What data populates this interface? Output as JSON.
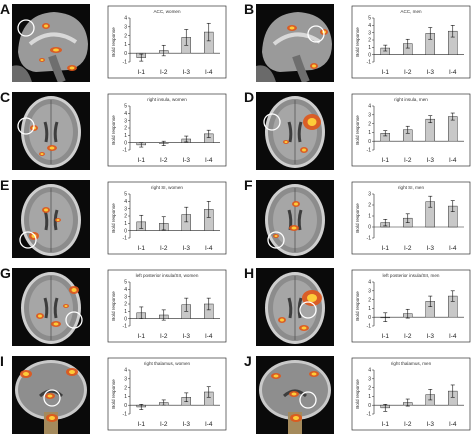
{
  "panels": [
    {
      "label": "A",
      "view": "sagittal"
    },
    {
      "label": "B",
      "view": "sagittal"
    },
    {
      "label": "C",
      "view": "axial"
    },
    {
      "label": "D",
      "view": "axial"
    },
    {
      "label": "E",
      "view": "axial"
    },
    {
      "label": "F",
      "view": "axial"
    },
    {
      "label": "G",
      "view": "axial"
    },
    {
      "label": "H",
      "view": "axial"
    },
    {
      "label": "I",
      "view": "coronal"
    },
    {
      "label": "J",
      "view": "coronal"
    }
  ],
  "chart_data": [
    {
      "type": "bar",
      "title": "ACC, women",
      "ylabel": "Bold response",
      "categories": [
        "I-1",
        "I-2",
        "I-3",
        "I-4"
      ],
      "values": [
        -0.5,
        0.3,
        1.8,
        2.4
      ],
      "errors": [
        0.4,
        0.6,
        0.9,
        1.0
      ],
      "ylim": [
        -1,
        4
      ],
      "yticks": [
        -1,
        0,
        1,
        2,
        3,
        4
      ]
    },
    {
      "type": "bar",
      "title": "ACC, men",
      "ylabel": "Bold response",
      "categories": [
        "I-1",
        "I-2",
        "I-3",
        "I-4"
      ],
      "values": [
        0.9,
        1.5,
        2.9,
        3.2
      ],
      "errors": [
        0.4,
        0.6,
        0.8,
        0.8
      ],
      "ylim": [
        -1,
        5
      ],
      "yticks": [
        -1,
        0,
        1,
        2,
        3,
        4,
        5
      ]
    },
    {
      "type": "bar",
      "title": "right insula, women",
      "ylabel": "Bold response",
      "categories": [
        "I-1",
        "I-2",
        "I-3",
        "I-4"
      ],
      "values": [
        -0.3,
        -0.1,
        0.5,
        1.2
      ],
      "errors": [
        0.3,
        0.3,
        0.4,
        0.5
      ],
      "ylim": [
        -1,
        5
      ],
      "yticks": [
        -1,
        0,
        1,
        2,
        3,
        4,
        5
      ]
    },
    {
      "type": "bar",
      "title": "right insula, men",
      "ylabel": "Bold response",
      "categories": [
        "I-1",
        "I-2",
        "I-3",
        "I-4"
      ],
      "values": [
        0.9,
        1.3,
        2.5,
        2.8
      ],
      "errors": [
        0.3,
        0.4,
        0.4,
        0.4
      ],
      "ylim": [
        -1,
        4
      ],
      "yticks": [
        -1,
        0,
        1,
        2,
        3,
        4
      ]
    },
    {
      "type": "bar",
      "title": "right SI, women",
      "ylabel": "Bold response",
      "categories": [
        "I-1",
        "I-2",
        "I-3",
        "I-4"
      ],
      "values": [
        1.2,
        1.0,
        2.2,
        2.9
      ],
      "errors": [
        0.9,
        0.9,
        1.0,
        1.1
      ],
      "ylim": [
        -1,
        5
      ],
      "yticks": [
        -1,
        0,
        1,
        2,
        3,
        4,
        5
      ]
    },
    {
      "type": "bar",
      "title": "right SI, men",
      "ylabel": "Bold response",
      "categories": [
        "I-1",
        "I-2",
        "I-3",
        "I-4"
      ],
      "values": [
        0.4,
        0.8,
        2.3,
        1.9
      ],
      "errors": [
        0.3,
        0.4,
        0.5,
        0.5
      ],
      "ylim": [
        -1,
        3
      ],
      "yticks": [
        -1,
        0,
        1,
        2,
        3
      ]
    },
    {
      "type": "bar",
      "title": "left posterior insula/SII, women",
      "ylabel": "Bold response",
      "categories": [
        "I-1",
        "I-2",
        "I-3",
        "I-4"
      ],
      "values": [
        0.8,
        0.5,
        1.9,
        2.0
      ],
      "errors": [
        0.8,
        0.7,
        0.9,
        0.8
      ],
      "ylim": [
        -1,
        5
      ],
      "yticks": [
        -1,
        0,
        1,
        2,
        3,
        4,
        5
      ]
    },
    {
      "type": "bar",
      "title": "left posterior insula/SII, men",
      "ylabel": "Bold response",
      "categories": [
        "I-1",
        "I-2",
        "I-3",
        "I-4"
      ],
      "values": [
        0.0,
        0.4,
        1.8,
        2.4
      ],
      "errors": [
        0.5,
        0.5,
        0.6,
        0.6
      ],
      "ylim": [
        -1,
        4
      ],
      "yticks": [
        -1,
        0,
        1,
        2,
        3,
        4
      ]
    },
    {
      "type": "bar",
      "title": "right thalamus, women",
      "ylabel": "Bold response",
      "categories": [
        "I-1",
        "I-2",
        "I-3",
        "I-4"
      ],
      "values": [
        -0.2,
        0.3,
        0.9,
        1.5
      ],
      "errors": [
        0.3,
        0.3,
        0.5,
        0.6
      ],
      "ylim": [
        -1,
        4
      ],
      "yticks": [
        -1,
        0,
        1,
        2,
        3,
        4
      ]
    },
    {
      "type": "bar",
      "title": "right thalamus, men",
      "ylabel": "Bold response",
      "categories": [
        "I-1",
        "I-2",
        "I-3",
        "I-4"
      ],
      "values": [
        -0.3,
        0.3,
        1.2,
        1.6
      ],
      "errors": [
        0.4,
        0.4,
        0.6,
        0.7
      ],
      "ylim": [
        -1,
        4
      ],
      "yticks": [
        -1,
        0,
        1,
        2,
        3,
        4
      ]
    }
  ]
}
